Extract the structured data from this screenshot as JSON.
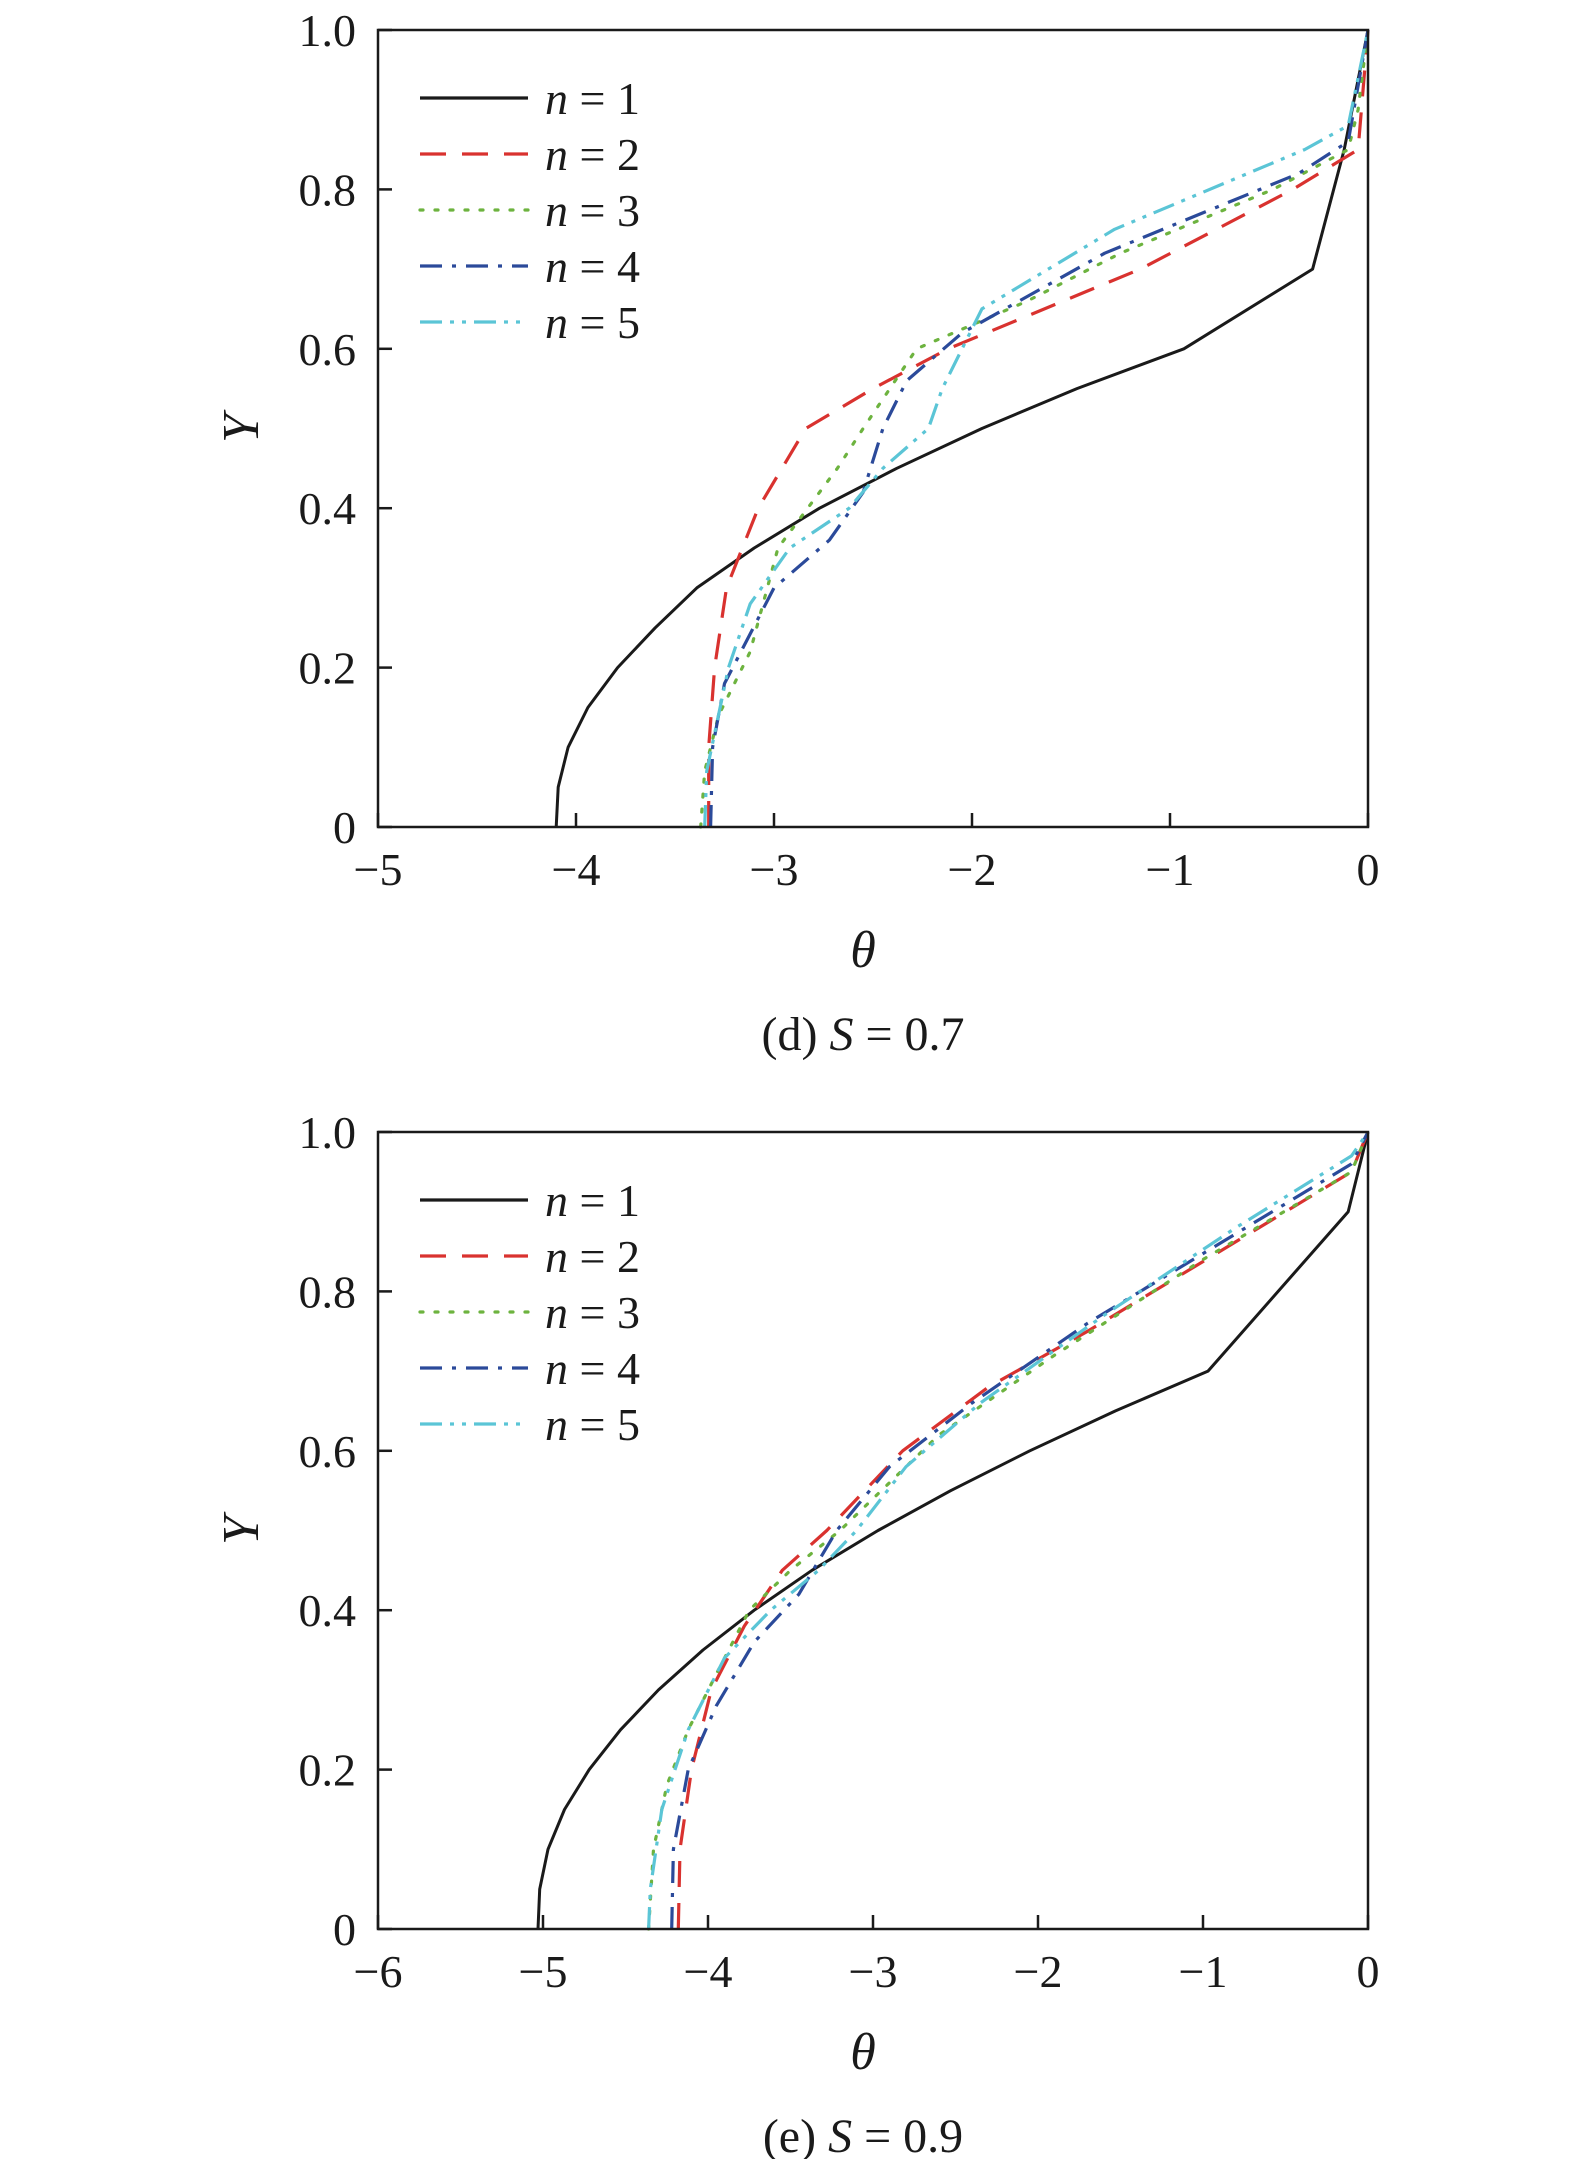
{
  "chart_data": [
    {
      "type": "line",
      "caption": {
        "prefix": "(d) ",
        "var": "S",
        "rest": " = 0.7"
      },
      "xlabel": "θ",
      "ylabel": "Y",
      "xlim": [
        -5,
        0
      ],
      "ylim": [
        0,
        1.0
      ],
      "xticks": [
        -5,
        -4,
        -3,
        -2,
        -1,
        0
      ],
      "yticks": [
        0,
        0.2,
        0.4,
        0.6,
        0.8,
        1.0
      ],
      "xtick_labels": [
        "−5",
        "−4",
        "−3",
        "−2",
        "−1",
        "0"
      ],
      "ytick_labels": [
        "0",
        "0.2",
        "0.4",
        "0.6",
        "0.8",
        "1.0"
      ],
      "grid": false,
      "legend_position": "top-left",
      "series": [
        {
          "legend": {
            "var": "n",
            "rest": " = 1"
          },
          "color": "#1a1a1a",
          "dash": "solid",
          "points": [
            [
              -4.1,
              0
            ],
            [
              -4.09,
              0.05
            ],
            [
              -4.04,
              0.1
            ],
            [
              -3.94,
              0.15
            ],
            [
              -3.79,
              0.2
            ],
            [
              -3.6,
              0.25
            ],
            [
              -3.39,
              0.3
            ],
            [
              -3.1,
              0.35
            ],
            [
              -2.77,
              0.4
            ],
            [
              -2.38,
              0.45
            ],
            [
              -1.95,
              0.5
            ],
            [
              -1.47,
              0.55
            ],
            [
              -0.93,
              0.6
            ],
            [
              -0.28,
              0.7
            ],
            [
              -0.12,
              0.85
            ],
            [
              0,
              1.0
            ]
          ]
        },
        {
          "legend": {
            "var": "n",
            "rest": " = 2"
          },
          "color": "#d9322f",
          "dash": "dashed",
          "points": [
            [
              -3.33,
              0
            ],
            [
              -3.33,
              0.1
            ],
            [
              -3.3,
              0.2
            ],
            [
              -3.24,
              0.3
            ],
            [
              -3.08,
              0.4
            ],
            [
              -2.84,
              0.5
            ],
            [
              -2.5,
              0.55
            ],
            [
              -2.12,
              0.6
            ],
            [
              -1.15,
              0.7
            ],
            [
              -0.38,
              0.8
            ],
            [
              -0.05,
              0.85
            ],
            [
              0,
              1.0
            ]
          ]
        },
        {
          "legend": {
            "var": "n",
            "rest": " = 3"
          },
          "color": "#6db33f",
          "dash": "dotted",
          "points": [
            [
              -3.37,
              0
            ],
            [
              -3.35,
              0.07
            ],
            [
              -3.28,
              0.14
            ],
            [
              -3.12,
              0.22
            ],
            [
              -2.98,
              0.35
            ],
            [
              -2.68,
              0.45
            ],
            [
              -2.55,
              0.5
            ],
            [
              -2.28,
              0.6
            ],
            [
              -1.72,
              0.66
            ],
            [
              -1.25,
              0.72
            ],
            [
              -0.48,
              0.8
            ],
            [
              -0.1,
              0.85
            ],
            [
              -0.05,
              0.9
            ],
            [
              0,
              1.0
            ]
          ]
        },
        {
          "legend": {
            "var": "n",
            "rest": " = 4"
          },
          "color": "#2b4a9a",
          "dash": "dashdot",
          "points": [
            [
              -3.32,
              0
            ],
            [
              -3.31,
              0.1
            ],
            [
              -3.25,
              0.18
            ],
            [
              -3.0,
              0.3
            ],
            [
              -2.72,
              0.36
            ],
            [
              -2.55,
              0.42
            ],
            [
              -2.45,
              0.5
            ],
            [
              -2.33,
              0.56
            ],
            [
              -2.05,
              0.62
            ],
            [
              -1.33,
              0.72
            ],
            [
              -0.35,
              0.82
            ],
            [
              -0.1,
              0.86
            ],
            [
              0,
              1.0
            ]
          ]
        },
        {
          "legend": {
            "var": "n",
            "rest": " = 5"
          },
          "color": "#5bc5d6",
          "dash": "dashdotdot",
          "points": [
            [
              -3.35,
              0
            ],
            [
              -3.34,
              0.07
            ],
            [
              -3.23,
              0.2
            ],
            [
              -3.12,
              0.28
            ],
            [
              -2.92,
              0.35
            ],
            [
              -2.62,
              0.4
            ],
            [
              -2.45,
              0.45
            ],
            [
              -2.22,
              0.5
            ],
            [
              -2.15,
              0.55
            ],
            [
              -1.95,
              0.65
            ],
            [
              -1.28,
              0.75
            ],
            [
              -0.32,
              0.85
            ],
            [
              -0.1,
              0.88
            ],
            [
              0,
              1.0
            ]
          ]
        }
      ]
    },
    {
      "type": "line",
      "caption": {
        "prefix": "(e) ",
        "var": "S",
        "rest": " = 0.9"
      },
      "xlabel": "θ",
      "ylabel": "Y",
      "xlim": [
        -6,
        0
      ],
      "ylim": [
        0,
        1.0
      ],
      "xticks": [
        -6,
        -5,
        -4,
        -3,
        -2,
        -1,
        0
      ],
      "yticks": [
        0,
        0.2,
        0.4,
        0.6,
        0.8,
        1.0
      ],
      "xtick_labels": [
        "−6",
        "−5",
        "−4",
        "−3",
        "−2",
        "−1",
        "0"
      ],
      "ytick_labels": [
        "0",
        "0.2",
        "0.4",
        "0.6",
        "0.8",
        "1.0"
      ],
      "grid": false,
      "legend_position": "top-left",
      "series": [
        {
          "legend": {
            "var": "n",
            "rest": " = 1"
          },
          "color": "#1a1a1a",
          "dash": "solid",
          "points": [
            [
              -5.03,
              0
            ],
            [
              -5.02,
              0.05
            ],
            [
              -4.97,
              0.1
            ],
            [
              -4.87,
              0.15
            ],
            [
              -4.72,
              0.2
            ],
            [
              -4.53,
              0.25
            ],
            [
              -4.3,
              0.3
            ],
            [
              -4.03,
              0.35
            ],
            [
              -3.72,
              0.4
            ],
            [
              -3.37,
              0.45
            ],
            [
              -2.97,
              0.5
            ],
            [
              -2.53,
              0.55
            ],
            [
              -2.05,
              0.6
            ],
            [
              -1.53,
              0.65
            ],
            [
              -0.97,
              0.7
            ],
            [
              -0.12,
              0.9
            ],
            [
              0,
              1.0
            ]
          ]
        },
        {
          "legend": {
            "var": "n",
            "rest": " = 2"
          },
          "color": "#d9322f",
          "dash": "dashed",
          "points": [
            [
              -4.18,
              0
            ],
            [
              -4.17,
              0.1
            ],
            [
              -4.1,
              0.2
            ],
            [
              -3.98,
              0.3
            ],
            [
              -3.78,
              0.38
            ],
            [
              -3.55,
              0.45
            ],
            [
              -3.28,
              0.5
            ],
            [
              -2.82,
              0.6
            ],
            [
              -2.3,
              0.68
            ],
            [
              -1.7,
              0.75
            ],
            [
              -0.9,
              0.85
            ],
            [
              -0.1,
              0.95
            ],
            [
              0,
              1.0
            ]
          ]
        },
        {
          "legend": {
            "var": "n",
            "rest": " = 3"
          },
          "color": "#6db33f",
          "dash": "dotted",
          "points": [
            [
              -4.36,
              0
            ],
            [
              -4.33,
              0.1
            ],
            [
              -4.25,
              0.18
            ],
            [
              -4.12,
              0.25
            ],
            [
              -3.95,
              0.32
            ],
            [
              -3.75,
              0.4
            ],
            [
              -3.5,
              0.45
            ],
            [
              -3.2,
              0.5
            ],
            [
              -2.6,
              0.62
            ],
            [
              -1.9,
              0.72
            ],
            [
              -1.0,
              0.84
            ],
            [
              -0.1,
              0.95
            ],
            [
              0,
              1.0
            ]
          ]
        },
        {
          "legend": {
            "var": "n",
            "rest": " = 4"
          },
          "color": "#2b4a9a",
          "dash": "dashdot",
          "points": [
            [
              -4.22,
              0
            ],
            [
              -4.21,
              0.1
            ],
            [
              -4.12,
              0.2
            ],
            [
              -3.95,
              0.28
            ],
            [
              -3.72,
              0.36
            ],
            [
              -3.45,
              0.42
            ],
            [
              -3.22,
              0.5
            ],
            [
              -2.9,
              0.58
            ],
            [
              -2.4,
              0.66
            ],
            [
              -1.7,
              0.76
            ],
            [
              -0.9,
              0.86
            ],
            [
              -0.1,
              0.96
            ],
            [
              0,
              1.0
            ]
          ]
        },
        {
          "legend": {
            "var": "n",
            "rest": " = 5"
          },
          "color": "#5bc5d6",
          "dash": "dashdotdot",
          "points": [
            [
              -4.36,
              0
            ],
            [
              -4.35,
              0.05
            ],
            [
              -4.28,
              0.15
            ],
            [
              -4.12,
              0.25
            ],
            [
              -3.9,
              0.34
            ],
            [
              -3.62,
              0.4
            ],
            [
              -3.33,
              0.45
            ],
            [
              -3.1,
              0.5
            ],
            [
              -2.8,
              0.58
            ],
            [
              -2.35,
              0.66
            ],
            [
              -1.6,
              0.77
            ],
            [
              -0.8,
              0.88
            ],
            [
              -0.1,
              0.97
            ],
            [
              0,
              1.0
            ]
          ]
        }
      ]
    }
  ]
}
